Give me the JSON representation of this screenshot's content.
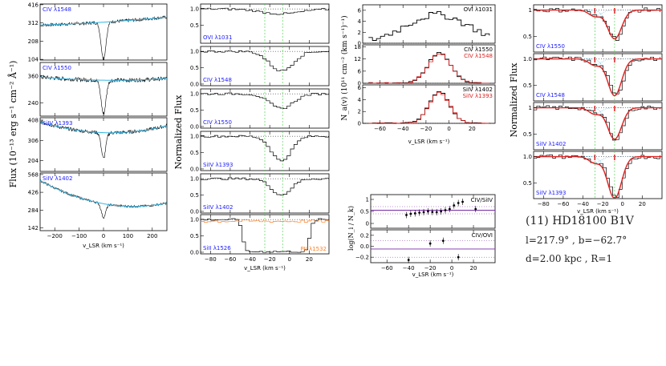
{
  "colors": {
    "blue": "#1a1aff",
    "red": "#e02020",
    "orange": "#ff7f24",
    "cyan": "#33b5e5",
    "green": "#33cc33",
    "purple": "#7a2aa8"
  },
  "info": {
    "title": "(11) HD18100 B1V",
    "coords": "l=217.9°  , b=−62.7°",
    "dist": "d=2.00 kpc , R=1"
  },
  "chart_data": [
    {
      "type": "line",
      "name": "flux-column",
      "ylabel": "Flux (10⁻¹³ erg s⁻¹ cm⁻² Å⁻¹)",
      "xlabel": "v_LSR (km s⁻¹)",
      "xlim": [
        -260,
        260
      ],
      "xticks": [
        -200,
        -100,
        0,
        100,
        200
      ],
      "xtick_labels": [
        "−200",
        "−100",
        "0",
        "100",
        "200"
      ],
      "panels": [
        {
          "label": "CIV λ1548",
          "yticks": [
            "416",
            "312",
            "208",
            "104"
          ],
          "yvals": [
            416,
            312,
            208,
            104
          ],
          "ylim": [
            100,
            420
          ],
          "cont": [
            300,
            310,
            345
          ],
          "depth": 210,
          "width": 10
        },
        {
          "label": "CIV λ1550",
          "yticks": [
            "360",
            "240"
          ],
          "yvals": [
            360,
            240
          ],
          "ylim": [
            180,
            420
          ],
          "cont": [
            355,
            330,
            348
          ],
          "depth": 150,
          "width": 10
        },
        {
          "label": "SiIV λ1393",
          "yticks": [
            "408",
            "306",
            "204"
          ],
          "yvals": [
            408,
            306,
            204
          ],
          "ylim": [
            150,
            420
          ],
          "cont": [
            400,
            300,
            380
          ],
          "depth": 130,
          "width": 9
        },
        {
          "label": "SiIV λ1402",
          "yticks": [
            "568",
            "426",
            "284",
            "142"
          ],
          "yvals": [
            568,
            426,
            284,
            142
          ],
          "ylim": [
            120,
            580
          ],
          "cont": [
            520,
            240,
            340
          ],
          "depth": 110,
          "width": 9
        }
      ]
    },
    {
      "type": "line",
      "name": "normalized-column",
      "ylabel": "Normalized Flux",
      "xlabel": "v_LSR (km s⁻¹)",
      "xlim": [
        -90,
        40
      ],
      "xticks": [
        -80,
        -60,
        -40,
        -20,
        0,
        20
      ],
      "xtick_labels": [
        "−80",
        "−60",
        "−40",
        "−20",
        "0",
        "20"
      ],
      "vlines": [
        -25,
        -7
      ],
      "panels": [
        {
          "label": "OVI λ1031",
          "yticks": [
            "1.0",
            "0.5"
          ],
          "yvals": [
            1.0,
            0.5
          ],
          "center": -10,
          "depth": 0.15,
          "width": 20
        },
        {
          "label": "CIV λ1548",
          "yticks": [
            "1.0",
            "0.5",
            "0.0"
          ],
          "yvals": [
            1.0,
            0.5,
            0.0
          ],
          "center": -10,
          "depth": 0.6,
          "width": 12
        },
        {
          "label": "CIV λ1550",
          "yticks": [
            "1.0",
            "0.5",
            "0.0"
          ],
          "yvals": [
            1.0,
            0.5,
            0.0
          ],
          "center": -10,
          "depth": 0.45,
          "width": 12
        },
        {
          "label": "SiIV λ1393",
          "yticks": [
            "1.0",
            "0.5",
            "0.0"
          ],
          "yvals": [
            1.0,
            0.5,
            0.0
          ],
          "center": -10,
          "depth": 0.75,
          "width": 10
        },
        {
          "label": "SiIV λ1402",
          "yticks": [
            "1.0",
            "0.5",
            "0.0"
          ],
          "yvals": [
            1.0,
            0.5,
            0.0
          ],
          "center": -10,
          "depth": 0.5,
          "width": 10
        },
        {
          "label": "SiII λ1526",
          "label2": "PII λ1532",
          "yticks": [
            "1.0",
            "0.5",
            "0.0"
          ],
          "yvals": [
            1.0,
            0.5,
            0.0
          ],
          "saturated": [
            -45,
            15
          ]
        }
      ]
    },
    {
      "type": "line",
      "name": "column-density",
      "ylabel": "N_a(v) (10¹¹ cm⁻² (km s⁻¹)⁻¹)",
      "xlabel": "v_LSR (km s⁻¹)",
      "xlim": [
        -75,
        40
      ],
      "xticks": [
        -60,
        -40,
        -20,
        0,
        20
      ],
      "xtick_labels": [
        "−60",
        "−40",
        "−20",
        "0",
        "20"
      ],
      "panels": [
        {
          "labels": [
            "OVI λ1031"
          ],
          "yticks": [
            "6",
            "4",
            "2",
            "0"
          ],
          "yvals": [
            6,
            4,
            2,
            0
          ],
          "ylim": [
            0,
            7
          ]
        },
        {
          "labels": [
            "CIV λ1550",
            "CIV λ1548"
          ],
          "yticks": [
            "18",
            "12",
            "6",
            "0"
          ],
          "yvals": [
            18,
            12,
            6,
            0
          ],
          "ylim": [
            0,
            19
          ]
        },
        {
          "labels": [
            "SiIV λ1402",
            "SiIV λ1393"
          ],
          "yticks": [
            "6",
            "4",
            "2",
            "0"
          ],
          "yvals": [
            6,
            4,
            2,
            0
          ],
          "ylim": [
            0,
            6.5
          ]
        }
      ]
    },
    {
      "type": "scatter",
      "name": "ratio",
      "ylabel": "log(N_i / N_k)",
      "xlabel": "v_LSR (km s⁻¹)",
      "xlim": [
        -75,
        40
      ],
      "xticks": [
        -60,
        -40,
        -20,
        0,
        20
      ],
      "xtick_labels": [
        "−60",
        "−40",
        "−20",
        "0",
        "20"
      ],
      "panels": [
        {
          "label": "CIV/SiIV",
          "yticks": [
            "1",
            "0.5",
            "0"
          ],
          "yvals": [
            1,
            0.5,
            0
          ],
          "ylim": [
            -0.2,
            1.2
          ],
          "line": 0.55,
          "points": [
            [
              -42,
              0.35
            ],
            [
              -38,
              0.4
            ],
            [
              -34,
              0.42
            ],
            [
              -30,
              0.45
            ],
            [
              -26,
              0.47
            ],
            [
              -22,
              0.5
            ],
            [
              -18,
              0.48
            ],
            [
              -14,
              0.47
            ],
            [
              -10,
              0.5
            ],
            [
              -6,
              0.55
            ],
            [
              -2,
              0.6
            ],
            [
              2,
              0.75
            ],
            [
              6,
              0.85
            ],
            [
              10,
              0.9
            ],
            [
              22,
              0.6
            ]
          ]
        },
        {
          "label": "CIV/OVI",
          "yticks": [
            "0.2",
            "0.0",
            "−0.2"
          ],
          "yvals": [
            0.2,
            0.0,
            -0.2
          ],
          "ylim": [
            -0.3,
            0.3
          ],
          "line": -0.05,
          "points": [
            [
              -40,
              -0.25
            ],
            [
              -20,
              0.05
            ],
            [
              -8,
              0.1
            ],
            [
              6,
              -0.2
            ]
          ]
        }
      ]
    },
    {
      "type": "line",
      "name": "fit-column",
      "ylabel": "Normalized Flux",
      "xlabel": "v_LSR (km s⁻¹)",
      "xlim": [
        -90,
        40
      ],
      "xticks": [
        -80,
        -60,
        -40,
        -20,
        0,
        20
      ],
      "xtick_labels": [
        "−80",
        "−60",
        "−40",
        "−20",
        "0",
        "20"
      ],
      "vlines": [
        -28,
        -8
      ],
      "panels": [
        {
          "label": "CIV λ1550",
          "yticks": [
            "1",
            "0.5"
          ],
          "yvals": [
            1,
            0.5
          ],
          "depth": 0.55
        },
        {
          "label": "CIV λ1548",
          "yticks": [
            "1.0",
            "0.5",
            "0.0"
          ],
          "yvals": [
            1.0,
            0.5,
            0.0
          ],
          "depth": 0.7
        },
        {
          "label": "SiIV λ1402",
          "yticks": [
            "1",
            "0.5"
          ],
          "yvals": [
            1,
            0.5
          ],
          "depth": 0.6
        },
        {
          "label": "SiIV λ1393",
          "yticks": [
            "1.0",
            "0.5"
          ],
          "yvals": [
            1.0,
            0.5
          ],
          "depth": 0.8
        }
      ]
    }
  ]
}
